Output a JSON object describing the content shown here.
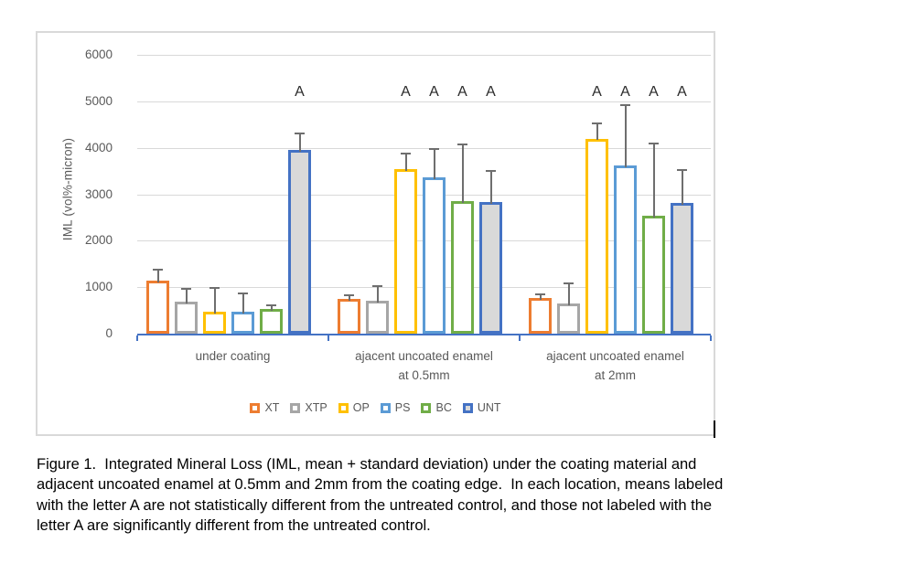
{
  "figure": {
    "caption_lines": [
      "Figure 1.  Integrated Mineral Loss (IML, mean + standard deviation) under the coating material and",
      "adjacent uncoated enamel at 0.5mm and 2mm from the coating edge.  In each location, means labeled",
      "with the letter A are not statistically different from the untreated control, and those not labeled with the",
      "letter A are significantly different from the untreated control."
    ]
  },
  "chart_data": {
    "type": "bar",
    "title": "",
    "ylabel": "IML  (vol%-micron)",
    "xlabel": "",
    "ylim": [
      0,
      6000
    ],
    "ytick_step": 1000,
    "grid": true,
    "legend_position": "bottom",
    "error_bars": "plus-direction standard deviation with cap",
    "significance_note": "A = not statistically different from untreated control",
    "categories": [
      {
        "lines": [
          "under coating"
        ]
      },
      {
        "lines": [
          "ajacent uncoated enamel",
          "at 0.5mm"
        ]
      },
      {
        "lines": [
          "ajacent uncoated enamel",
          "at 2mm"
        ]
      }
    ],
    "series": [
      {
        "name": "XT",
        "border_color": "#ED7D31",
        "fill_color": "#FFFFFF",
        "values": [
          1140,
          740,
          770
        ],
        "sd": [
          260,
          100,
          95
        ],
        "sig_letters": [
          "",
          "",
          ""
        ]
      },
      {
        "name": "XTP",
        "border_color": "#A6A6A6",
        "fill_color": "#FFFFFF",
        "values": [
          680,
          715,
          640
        ],
        "sd": [
          300,
          325,
          465
        ],
        "sig_letters": [
          "",
          "",
          ""
        ]
      },
      {
        "name": "OP",
        "border_color": "#FFC000",
        "fill_color": "#FFFFFF",
        "values": [
          470,
          3550,
          4200
        ],
        "sd": [
          530,
          340,
          340
        ],
        "sig_letters": [
          "",
          "A",
          "A"
        ]
      },
      {
        "name": "PS",
        "border_color": "#5B9BD5",
        "fill_color": "#FFFFFF",
        "values": [
          480,
          3370,
          3620
        ],
        "sd": [
          410,
          615,
          1310
        ],
        "sig_letters": [
          "",
          "A",
          "A"
        ]
      },
      {
        "name": "BC",
        "border_color": "#70AD47",
        "fill_color": "#FFFFFF",
        "values": [
          540,
          2860,
          2540
        ],
        "sd": [
          80,
          1240,
          1580
        ],
        "sig_letters": [
          "",
          "A",
          "A"
        ]
      },
      {
        "name": "UNT",
        "border_color": "#4472C4",
        "fill_color": "#D9D9D9",
        "values": [
          3950,
          2840,
          2820
        ],
        "sd": [
          380,
          690,
          715
        ],
        "sig_letters": [
          "A",
          "A",
          "A"
        ]
      }
    ],
    "colors": {
      "gridline": "#D9D9D9",
      "axis_line": "#4472C4",
      "error_bar": "#6E6E6E",
      "tick_text": "#595959",
      "sig_letter_text": "#2B2B2B",
      "chart_border": "#D9D9D9"
    }
  }
}
